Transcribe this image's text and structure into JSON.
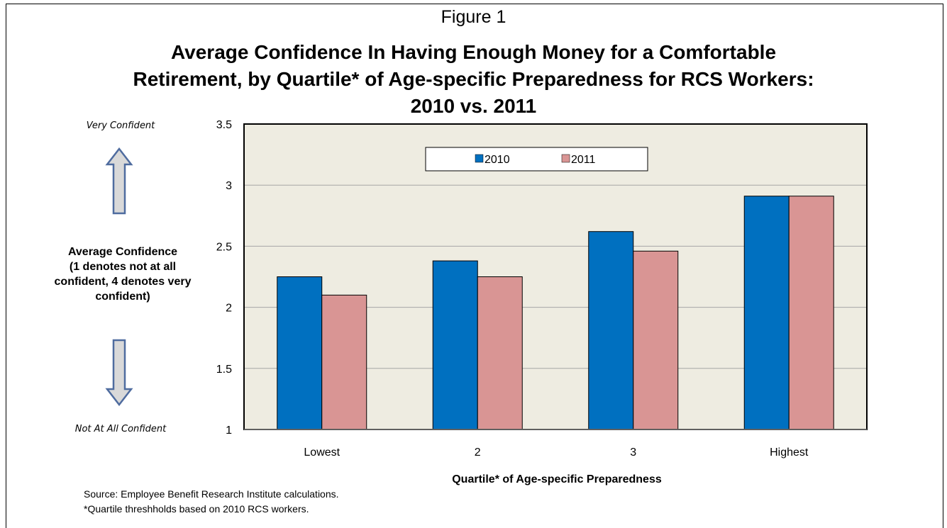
{
  "figure_label": "Figure 1",
  "title_lines": [
    "Average Confidence In Having Enough Money for a Comfortable",
    "Retirement, by Quartile* of Age-specific Preparedness for RCS Workers:",
    "2010 vs. 2011"
  ],
  "side": {
    "top_label": "Very Confident",
    "middle_lines": [
      "Average Confidence",
      "(1 denotes not at all",
      "confident, 4 denotes very",
      "confident)"
    ],
    "bottom_label": "Not At All Confident"
  },
  "notes": {
    "source": "Source:  Employee Benefit Research Institute  calculations.",
    "footnote": "*Quartile threshholds based on 2010 RCS workers."
  },
  "colors": {
    "series_2010": "#0070c0",
    "series_2011": "#d99594",
    "plot_background": "#eeece1",
    "arrow_fill": "#d9d9d9",
    "arrow_stroke": "#4f6c9f"
  },
  "chart_data": {
    "type": "bar",
    "categories": [
      "Lowest",
      "2",
      "3",
      "Highest"
    ],
    "series": [
      {
        "name": "2010",
        "values": [
          2.25,
          2.38,
          2.62,
          2.91
        ]
      },
      {
        "name": "2011",
        "values": [
          2.1,
          2.25,
          2.46,
          2.91
        ]
      }
    ],
    "xlabel": "Quartile* of Age-specific Preparedness",
    "ylabel": "",
    "ylim": [
      1,
      3.5
    ],
    "yticks": [
      "1",
      "1.5",
      "2",
      "2.5",
      "3",
      "3.5"
    ],
    "grid": true,
    "legend": "top-center"
  }
}
